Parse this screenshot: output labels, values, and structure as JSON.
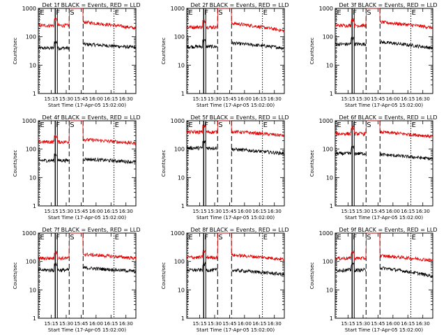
{
  "figure": {
    "background": "#ffffff",
    "colors": {
      "events": "#000000",
      "lld": "#e00000",
      "axes": "#000000"
    }
  },
  "chart_data": [
    {
      "type": "line",
      "title": "Det 1f BLACK = Events, RED = LLD",
      "xlabel": "Start Time (17-Apr-05 15:02:00)",
      "ylabel": "Counts/sec",
      "xticks": [
        "15:15",
        "15:30",
        "15:45",
        "16:00",
        "16:15",
        "16:30"
      ],
      "xlim": [
        "15:02",
        "16:40"
      ],
      "yscale": "log",
      "ylim": [
        1,
        1000
      ],
      "yticks": [
        "1",
        "10",
        "100",
        "1000"
      ],
      "markers": [
        {
          "label": "E",
          "x": "15:03",
          "style": "dotted"
        },
        {
          "label": "F",
          "x": "15:19",
          "style": "solid"
        },
        {
          "label": "S",
          "x": "15:33",
          "style": "dashed"
        },
        {
          "label": "",
          "x": "15:47",
          "style": "dashed"
        },
        {
          "label": "E",
          "x": "16:18",
          "style": "dotted"
        }
      ],
      "series": [
        {
          "name": "Events",
          "color": "#000000",
          "before": 40,
          "gap_x": [
            "15:33",
            "15:47"
          ],
          "after": 55,
          "end": 42
        },
        {
          "name": "LLD",
          "color": "#e00000",
          "before": 250,
          "peak": 1000,
          "after": 330,
          "end": 200
        }
      ]
    },
    {
      "type": "line",
      "title": "Det 2f BLACK = Events, RED = LLD",
      "xlabel": "Start Time (17-Apr-05 15:02:00)",
      "ylabel": "Counts/sec",
      "xticks": [
        "15:15",
        "15:30",
        "15:45",
        "16:00",
        "16:15",
        "16:30"
      ],
      "xlim": [
        "15:02",
        "16:40"
      ],
      "yscale": "log",
      "ylim": [
        1,
        1000
      ],
      "yticks": [
        "1",
        "10",
        "100",
        "1000"
      ],
      "markers": [
        {
          "label": "E",
          "x": "15:03",
          "style": "dotted"
        },
        {
          "label": "F",
          "x": "15:19",
          "style": "solid"
        },
        {
          "label": "S",
          "x": "15:33",
          "style": "dashed"
        },
        {
          "label": "",
          "x": "15:47",
          "style": "dashed"
        },
        {
          "label": "E",
          "x": "16:18",
          "style": "dotted"
        }
      ],
      "series": [
        {
          "name": "Events",
          "color": "#000000",
          "before": 45,
          "after": 60,
          "end": 40
        },
        {
          "name": "LLD",
          "color": "#e00000",
          "before": 220,
          "peak": 1000,
          "after": 300,
          "end": 160
        }
      ]
    },
    {
      "type": "line",
      "title": "Det 3f BLACK = Events, RED = LLD",
      "xlabel": "Start Time (17-Apr-05 15:02:00)",
      "ylabel": "Counts/sec",
      "xticks": [
        "15:15",
        "15:30",
        "15:45",
        "16:00",
        "16:15",
        "16:30"
      ],
      "xlim": [
        "15:02",
        "16:40"
      ],
      "yscale": "log",
      "ylim": [
        1,
        1000
      ],
      "yticks": [
        "1",
        "10",
        "100",
        "1000"
      ],
      "markers": [
        {
          "label": "E",
          "x": "15:03",
          "style": "dotted"
        },
        {
          "label": "F",
          "x": "15:19",
          "style": "solid"
        },
        {
          "label": "S",
          "x": "15:33",
          "style": "dashed"
        },
        {
          "label": "",
          "x": "15:47",
          "style": "dashed"
        },
        {
          "label": "E",
          "x": "16:18",
          "style": "dotted"
        }
      ],
      "series": [
        {
          "name": "Events",
          "color": "#000000",
          "before": 55,
          "after": 65,
          "end": 40
        },
        {
          "name": "LLD",
          "color": "#e00000",
          "before": 250,
          "peak": 1000,
          "after": 330,
          "end": 210
        }
      ]
    },
    {
      "type": "line",
      "title": "Det 4f BLACK = Events, RED = LLD",
      "xlabel": "Start Time (17-Apr-05 15:02:00)",
      "ylabel": "Counts/sec",
      "xticks": [
        "15:15",
        "15:30",
        "15:45",
        "16:00",
        "16:15",
        "16:30"
      ],
      "xlim": [
        "15:02",
        "16:40"
      ],
      "yscale": "log",
      "ylim": [
        1,
        1000
      ],
      "yticks": [
        "1",
        "10",
        "100",
        "1000"
      ],
      "markers": [
        {
          "label": "E",
          "x": "15:03",
          "style": "dotted"
        },
        {
          "label": "F",
          "x": "15:19",
          "style": "solid"
        },
        {
          "label": "S",
          "x": "15:33",
          "style": "dashed"
        },
        {
          "label": "",
          "x": "15:47",
          "style": "dashed"
        },
        {
          "label": "E",
          "x": "16:18",
          "style": "dotted"
        }
      ],
      "series": [
        {
          "name": "Events",
          "color": "#000000",
          "before": 40,
          "after": 45,
          "end": 35
        },
        {
          "name": "LLD",
          "color": "#e00000",
          "before": 180,
          "peak": 1000,
          "after": 220,
          "end": 160
        }
      ]
    },
    {
      "type": "line",
      "title": "Det 5f BLACK = Events, RED = LLD",
      "xlabel": "Start Time (17-Apr-05 15:02:00)",
      "ylabel": "Counts/sec",
      "xticks": [
        "15:15",
        "15:30",
        "15:45",
        "16:00",
        "16:15",
        "16:30"
      ],
      "xlim": [
        "15:02",
        "16:40"
      ],
      "yscale": "log",
      "ylim": [
        1,
        1000
      ],
      "yticks": [
        "1",
        "10",
        "100",
        "1000"
      ],
      "markers": [
        {
          "label": "E",
          "x": "15:03",
          "style": "dotted"
        },
        {
          "label": "F",
          "x": "15:19",
          "style": "solid"
        },
        {
          "label": "S",
          "x": "15:33",
          "style": "dashed"
        },
        {
          "label": "",
          "x": "15:47",
          "style": "dashed"
        },
        {
          "label": "E",
          "x": "16:18",
          "style": "dotted"
        }
      ],
      "series": [
        {
          "name": "Events",
          "color": "#000000",
          "before": 110,
          "after": 100,
          "end": 70
        },
        {
          "name": "LLD",
          "color": "#e00000",
          "before": 400,
          "peak": 1000,
          "after": 420,
          "end": 300
        }
      ]
    },
    {
      "type": "line",
      "title": "Det 6f BLACK = Events, RED = LLD",
      "xlabel": "Start Time (17-Apr-05 15:02:00)",
      "ylabel": "Counts/sec",
      "xticks": [
        "15:15",
        "15:30",
        "15:45",
        "16:00",
        "16:15",
        "16:30"
      ],
      "xlim": [
        "15:02",
        "16:40"
      ],
      "yscale": "log",
      "ylim": [
        1,
        1000
      ],
      "yticks": [
        "1",
        "10",
        "100",
        "1000"
      ],
      "markers": [
        {
          "label": "E",
          "x": "15:03",
          "style": "dotted"
        },
        {
          "label": "F",
          "x": "15:19",
          "style": "solid"
        },
        {
          "label": "S",
          "x": "15:33",
          "style": "dashed"
        },
        {
          "label": "",
          "x": "15:47",
          "style": "dashed"
        },
        {
          "label": "E",
          "x": "16:18",
          "style": "dotted"
        }
      ],
      "series": [
        {
          "name": "Events",
          "color": "#000000",
          "before": 70,
          "after": 65,
          "end": 45
        },
        {
          "name": "LLD",
          "color": "#e00000",
          "before": 350,
          "peak": 1000,
          "after": 400,
          "end": 280
        }
      ]
    },
    {
      "type": "line",
      "title": "Det 7f BLACK = Events, RED = LLD",
      "xlabel": "Start Time (17-Apr-05 15:02:00)",
      "ylabel": "Counts/sec",
      "xticks": [
        "15:15",
        "15:30",
        "15:45",
        "16:00",
        "16:15",
        "16:30"
      ],
      "xlim": [
        "15:02",
        "16:40"
      ],
      "yscale": "log",
      "ylim": [
        1,
        1000
      ],
      "yticks": [
        "1",
        "10",
        "100",
        "1000"
      ],
      "markers": [
        {
          "label": "E",
          "x": "15:03",
          "style": "dotted"
        },
        {
          "label": "F",
          "x": "15:19",
          "style": "solid"
        },
        {
          "label": "S",
          "x": "15:33",
          "style": "dashed"
        },
        {
          "label": "",
          "x": "15:47",
          "style": "dashed"
        },
        {
          "label": "E",
          "x": "16:18",
          "style": "dotted"
        }
      ],
      "series": [
        {
          "name": "Events",
          "color": "#000000",
          "before": 50,
          "after": 60,
          "end": 45
        },
        {
          "name": "LLD",
          "color": "#e00000",
          "before": 130,
          "peak": 1000,
          "after": 180,
          "end": 130
        }
      ]
    },
    {
      "type": "line",
      "title": "Det 8f BLACK = Events, RED = LLD",
      "xlabel": "Start Time (17-Apr-05 15:02:00)",
      "ylabel": "Counts/sec",
      "xticks": [
        "15:15",
        "15:30",
        "15:45",
        "16:00",
        "16:15",
        "16:30"
      ],
      "xlim": [
        "15:02",
        "16:40"
      ],
      "yscale": "log",
      "ylim": [
        1,
        1000
      ],
      "yticks": [
        "1",
        "10",
        "100",
        "1000"
      ],
      "markers": [
        {
          "label": "E",
          "x": "15:03",
          "style": "dotted"
        },
        {
          "label": "F",
          "x": "15:19",
          "style": "solid"
        },
        {
          "label": "S",
          "x": "15:33",
          "style": "dashed"
        },
        {
          "label": "",
          "x": "15:47",
          "style": "dashed"
        },
        {
          "label": "E",
          "x": "16:18",
          "style": "dotted"
        }
      ],
      "series": [
        {
          "name": "Events",
          "color": "#000000",
          "before": 50,
          "after": 50,
          "end": 35
        },
        {
          "name": "LLD",
          "color": "#e00000",
          "before": 140,
          "peak": 1000,
          "after": 170,
          "end": 120
        }
      ]
    },
    {
      "type": "line",
      "title": "Det 9f BLACK = Events, RED = LLD",
      "xlabel": "Start Time (17-Apr-05 15:02:00)",
      "ylabel": "Counts/sec",
      "xticks": [
        "15:15",
        "15:30",
        "15:45",
        "16:00",
        "16:15",
        "16:30"
      ],
      "xlim": [
        "15:02",
        "16:40"
      ],
      "yscale": "log",
      "ylim": [
        1,
        1000
      ],
      "yticks": [
        "1",
        "10",
        "100",
        "1000"
      ],
      "markers": [
        {
          "label": "E",
          "x": "15:03",
          "style": "dotted"
        },
        {
          "label": "F",
          "x": "15:19",
          "style": "solid"
        },
        {
          "label": "S",
          "x": "15:33",
          "style": "dashed"
        },
        {
          "label": "",
          "x": "15:47",
          "style": "dashed"
        },
        {
          "label": "E",
          "x": "16:18",
          "style": "dotted"
        }
      ],
      "series": [
        {
          "name": "Events",
          "color": "#000000",
          "before": 50,
          "after": 60,
          "end": 30
        },
        {
          "name": "LLD",
          "color": "#e00000",
          "before": 130,
          "peak": 1000,
          "after": 160,
          "end": 110
        }
      ]
    }
  ]
}
